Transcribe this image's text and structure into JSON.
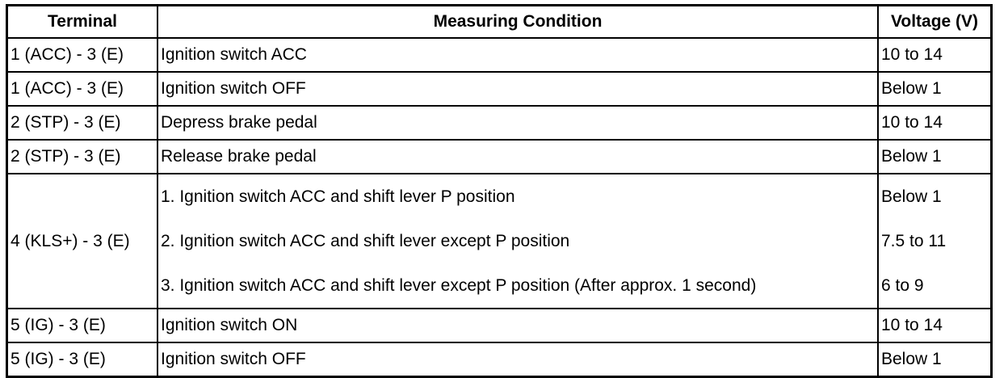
{
  "table": {
    "header": [
      "Terminal",
      "Measuring Condition",
      "Voltage (V)"
    ],
    "rows": [
      {
        "terminal": "1 (ACC) - 3 (E)",
        "conditions": [
          "Ignition switch ACC"
        ],
        "voltages": [
          "10 to 14"
        ]
      },
      {
        "terminal": "1 (ACC) - 3 (E)",
        "conditions": [
          "Ignition switch OFF"
        ],
        "voltages": [
          "Below 1"
        ]
      },
      {
        "terminal": "2 (STP) - 3 (E)",
        "conditions": [
          "Depress brake pedal"
        ],
        "voltages": [
          "10 to 14"
        ]
      },
      {
        "terminal": "2 (STP) - 3 (E)",
        "conditions": [
          "Release brake pedal"
        ],
        "voltages": [
          "Below 1"
        ]
      },
      {
        "terminal": "4 (KLS+) - 3 (E)",
        "conditions": [
          "1. Ignition switch ACC and shift lever P position",
          "2. Ignition switch ACC and shift lever except P position",
          "3. Ignition switch ACC and shift lever except P position (After approx. 1 second)"
        ],
        "voltages": [
          "Below 1",
          "7.5 to 11",
          "6 to 9"
        ]
      },
      {
        "terminal": "5 (IG) - 3 (E)",
        "conditions": [
          "Ignition switch ON"
        ],
        "voltages": [
          "10 to 14"
        ]
      },
      {
        "terminal": "5 (IG) - 3 (E)",
        "conditions": [
          "Ignition switch OFF"
        ],
        "voltages": [
          "Below 1"
        ]
      }
    ]
  }
}
